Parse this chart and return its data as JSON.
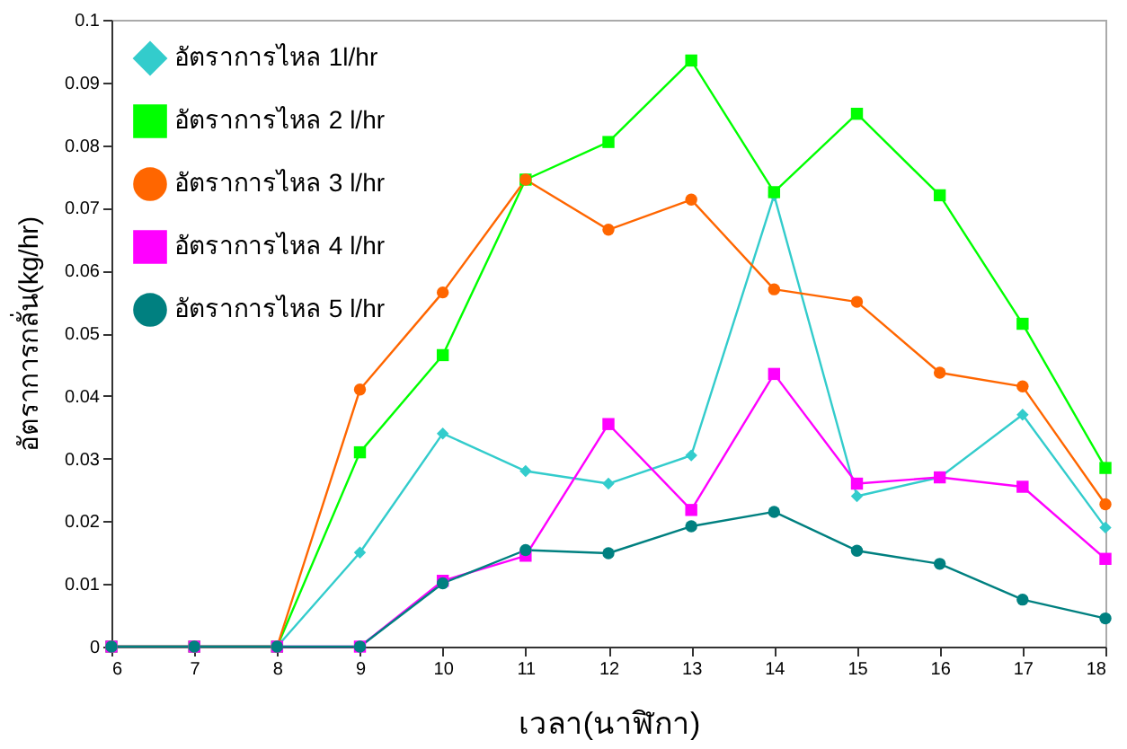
{
  "chart_data": {
    "type": "line",
    "xlabel": "เวลา(นาฬิกา)",
    "ylabel": "อัตราการกลั่น(kg/hr)",
    "x": [
      6,
      7,
      8,
      9,
      10,
      11,
      12,
      13,
      14,
      15,
      16,
      17,
      18
    ],
    "xlim": [
      6,
      18
    ],
    "xticks": [
      6,
      7,
      8,
      9,
      10,
      11,
      12,
      13,
      14,
      15,
      16,
      17,
      18
    ],
    "ylim": [
      0,
      0.1
    ],
    "yticks": [
      0,
      0.01,
      0.02,
      0.03,
      0.04,
      0.05,
      0.06,
      0.07,
      0.08,
      0.09,
      0.1
    ],
    "grid": false,
    "legend": "top left",
    "series": [
      {
        "name": "อัตราการไหล 1l/hr",
        "color": "#33cccc",
        "marker": "diamond",
        "values": [
          0,
          0,
          0,
          0.015,
          0.034,
          0.028,
          0.026,
          0.0305,
          0.072,
          0.024,
          0.027,
          0.037,
          0.019
        ]
      },
      {
        "name": "อัตราการไหล 2 l/hr",
        "color": "#00ff00",
        "marker": "square",
        "values": [
          0,
          0,
          0,
          0.031,
          0.0465,
          0.0745,
          0.0805,
          0.0935,
          0.0725,
          0.085,
          0.072,
          0.0515,
          0.0285
        ]
      },
      {
        "name": "อัตราการไหล 3 l/hr",
        "color": "#ff6600",
        "marker": "circle",
        "values": [
          0,
          0,
          0,
          0.041,
          0.0565,
          0.0745,
          0.0665,
          0.0713,
          0.057,
          0.055,
          0.0437,
          0.0415,
          0.0227
        ]
      },
      {
        "name": "อัตราการไหล 4 l/hr",
        "color": "#ff00ff",
        "marker": "square",
        "values": [
          0,
          0,
          0,
          0,
          0.0105,
          0.0145,
          0.0355,
          0.0218,
          0.0435,
          0.026,
          0.027,
          0.0255,
          0.014
        ]
      },
      {
        "name": "อัตราการไหล 5 l/hr",
        "color": "#008080",
        "marker": "circle",
        "values": [
          0,
          0,
          0,
          0,
          0.0101,
          0.0154,
          0.0149,
          0.0192,
          0.0215,
          0.0153,
          0.0132,
          0.0075,
          0.0045
        ]
      }
    ]
  }
}
